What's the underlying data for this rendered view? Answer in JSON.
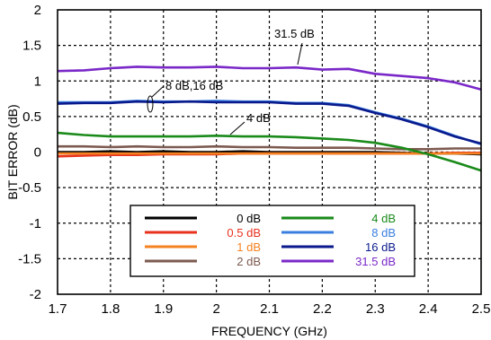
{
  "chart_data": {
    "type": "line",
    "xlabel": "FREQUENCY (GHz)",
    "ylabel": "BIT ERROR (dB)",
    "xlim": [
      1.7,
      2.5
    ],
    "ylim": [
      -2,
      2
    ],
    "x_ticks": [
      "1.7",
      "1.8",
      "1.9",
      "2",
      "2.1",
      "2.2",
      "2.3",
      "2.4",
      "2.5"
    ],
    "y_ticks": [
      "-2",
      "-1.5",
      "-1",
      "-0.5",
      "0",
      "0.5",
      "1",
      "1.5",
      "2"
    ],
    "grid": true,
    "legend_position": "bottom-center",
    "annotations": {
      "a315": "31.5 dB",
      "a816": "8 dB,16 dB",
      "a4": "4 dB"
    },
    "x": [
      1.7,
      1.75,
      1.8,
      1.85,
      1.9,
      1.95,
      2.0,
      2.05,
      2.1,
      2.15,
      2.2,
      2.25,
      2.3,
      2.35,
      2.4,
      2.45,
      2.5
    ],
    "series": [
      {
        "name": "0 dB",
        "color": "#000000",
        "values": [
          0.0,
          0.0,
          0.01,
          0.0,
          0.01,
          0.0,
          0.0,
          0.01,
          0.0,
          0.0,
          0.0,
          0.0,
          0.0,
          -0.01,
          -0.02,
          -0.02,
          -0.03
        ]
      },
      {
        "name": "0.5 dB",
        "color": "#e8321e",
        "values": [
          -0.06,
          -0.05,
          -0.04,
          -0.04,
          -0.03,
          -0.03,
          -0.03,
          -0.02,
          -0.02,
          -0.02,
          -0.02,
          -0.02,
          -0.02,
          -0.02,
          -0.02,
          -0.01,
          -0.01
        ]
      },
      {
        "name": "1 dB",
        "color": "#f58220",
        "values": [
          -0.02,
          -0.02,
          -0.02,
          -0.02,
          -0.02,
          -0.02,
          -0.02,
          -0.02,
          -0.02,
          -0.02,
          -0.02,
          -0.02,
          -0.02,
          -0.02,
          -0.02,
          -0.02,
          -0.02
        ]
      },
      {
        "name": "2 dB",
        "color": "#7d5a50",
        "values": [
          0.08,
          0.08,
          0.07,
          0.08,
          0.07,
          0.07,
          0.08,
          0.07,
          0.07,
          0.06,
          0.06,
          0.06,
          0.05,
          0.04,
          0.04,
          0.05,
          0.05
        ]
      },
      {
        "name": "4 dB",
        "color": "#1a8a1a",
        "values": [
          0.27,
          0.24,
          0.22,
          0.22,
          0.22,
          0.22,
          0.23,
          0.22,
          0.22,
          0.21,
          0.19,
          0.17,
          0.13,
          0.06,
          -0.03,
          -0.14,
          -0.26
        ]
      },
      {
        "name": "8 dB",
        "color": "#3a7fe0",
        "values": [
          0.7,
          0.7,
          0.7,
          0.72,
          0.71,
          0.71,
          0.72,
          0.71,
          0.71,
          0.69,
          0.69,
          0.66,
          0.56,
          0.47,
          0.36,
          0.23,
          0.11
        ]
      },
      {
        "name": "16 dB",
        "color": "#0a1a8c",
        "values": [
          0.68,
          0.69,
          0.69,
          0.71,
          0.7,
          0.71,
          0.7,
          0.7,
          0.7,
          0.68,
          0.68,
          0.65,
          0.55,
          0.46,
          0.35,
          0.22,
          0.12
        ]
      },
      {
        "name": "31.5 dB",
        "color": "#7a28c8",
        "values": [
          1.14,
          1.15,
          1.18,
          1.2,
          1.19,
          1.19,
          1.2,
          1.18,
          1.18,
          1.19,
          1.16,
          1.17,
          1.1,
          1.07,
          1.04,
          0.98,
          0.88
        ]
      }
    ],
    "legend_order": [
      "0 dB",
      "4 dB",
      "0.5 dB",
      "8 dB",
      "1 dB",
      "16 dB",
      "2 dB",
      "31.5 dB"
    ]
  }
}
